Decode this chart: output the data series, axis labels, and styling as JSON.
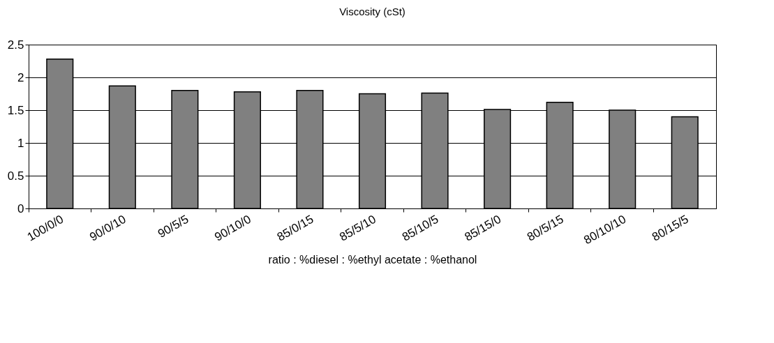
{
  "chart_data": {
    "type": "bar",
    "title": "Viscosity (cSt)",
    "xlabel": "ratio : %diesel : %ethyl acetate : %ethanol",
    "categories": [
      "100/0/0",
      "90/0/10",
      "90/5/5",
      "90/10/0",
      "85/0/15",
      "85/5/10",
      "85/10/5",
      "85/15/0",
      "80/5/15",
      "80/10/10",
      "80/15/5"
    ],
    "values": [
      2.28,
      1.87,
      1.8,
      1.78,
      1.8,
      1.75,
      1.76,
      1.51,
      1.62,
      1.5,
      1.4
    ],
    "color": "#808080",
    "ylim": [
      0,
      2.5
    ],
    "yticks": [
      0,
      0.5,
      1,
      1.5,
      2,
      2.5
    ],
    "grid": "y"
  }
}
